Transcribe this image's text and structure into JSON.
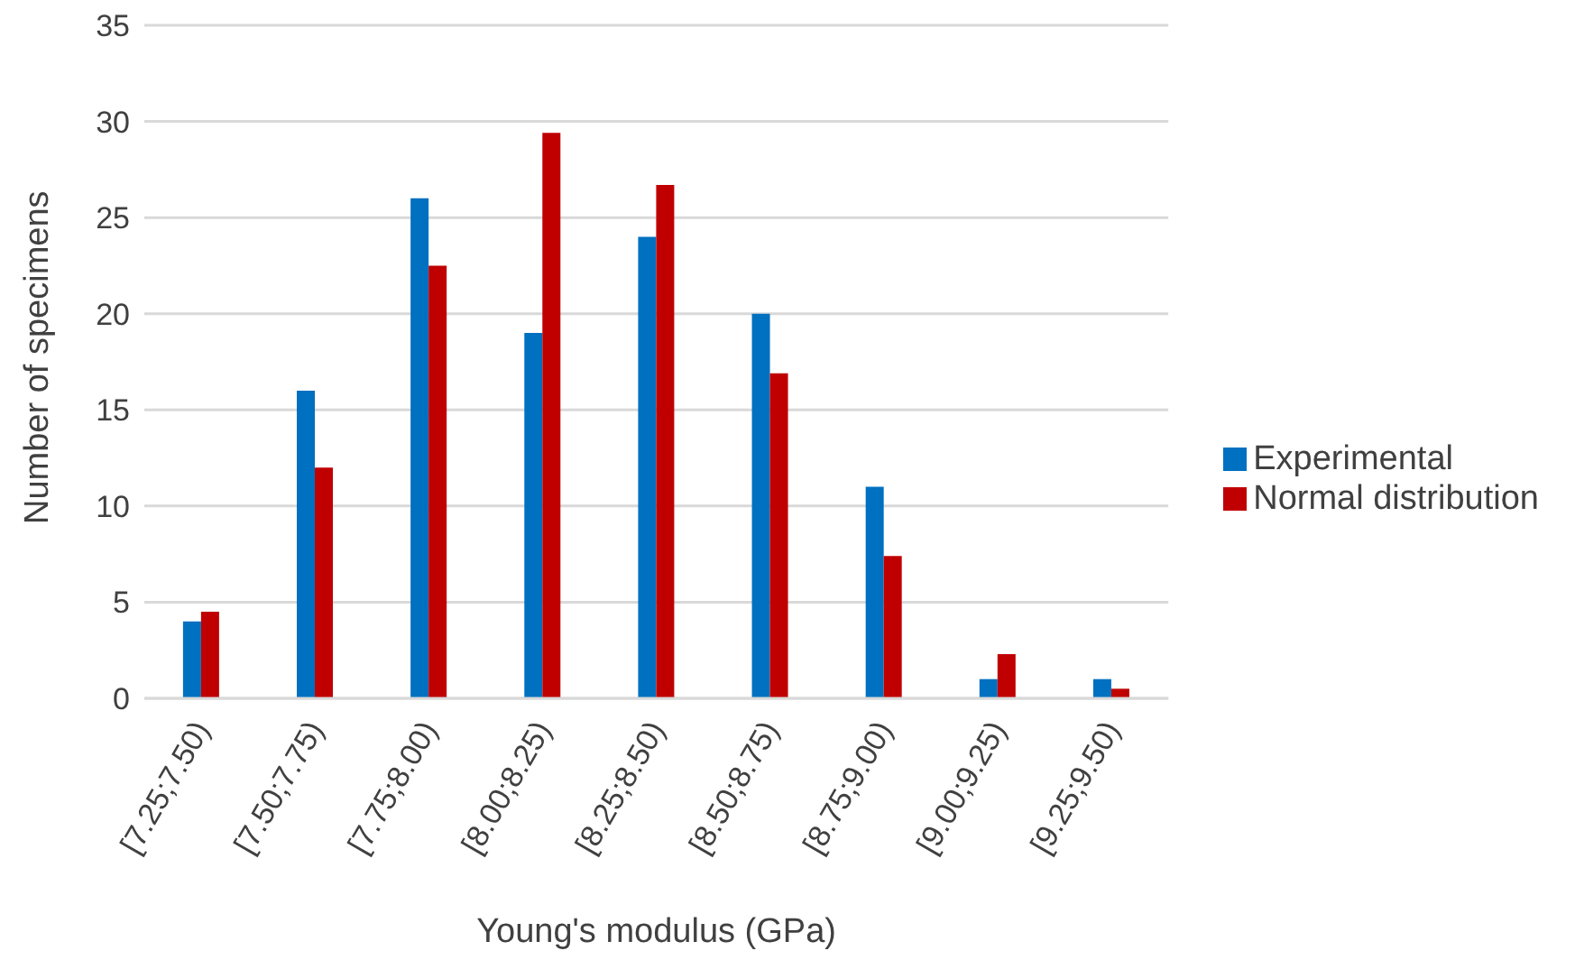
{
  "chart_data": {
    "type": "bar",
    "xlabel": "Young's modulus (GPa)",
    "ylabel": "Number of specimens",
    "categories": [
      "[7.25;7.50)",
      "[7.50;7.75)",
      "[7.75;8.00)",
      "[8.00;8.25)",
      "[8.25;8.50)",
      "[8.50;8.75)",
      "[8.75;9.00)",
      "[9.00;9.25)",
      "[9.25;9.50)"
    ],
    "series": [
      {
        "name": "Experimental",
        "color": "#0070c0",
        "values": [
          4,
          16,
          26,
          19,
          24,
          20,
          11,
          1,
          1
        ]
      },
      {
        "name": "Normal distribution",
        "color": "#c00000",
        "values": [
          4.5,
          12,
          22.5,
          29.4,
          26.7,
          16.9,
          7.4,
          2.3,
          0.5
        ]
      }
    ],
    "ylim": [
      0,
      35
    ],
    "yticks": [
      0,
      5,
      10,
      15,
      20,
      25,
      30,
      35
    ],
    "grid": "y",
    "legend": "right"
  }
}
